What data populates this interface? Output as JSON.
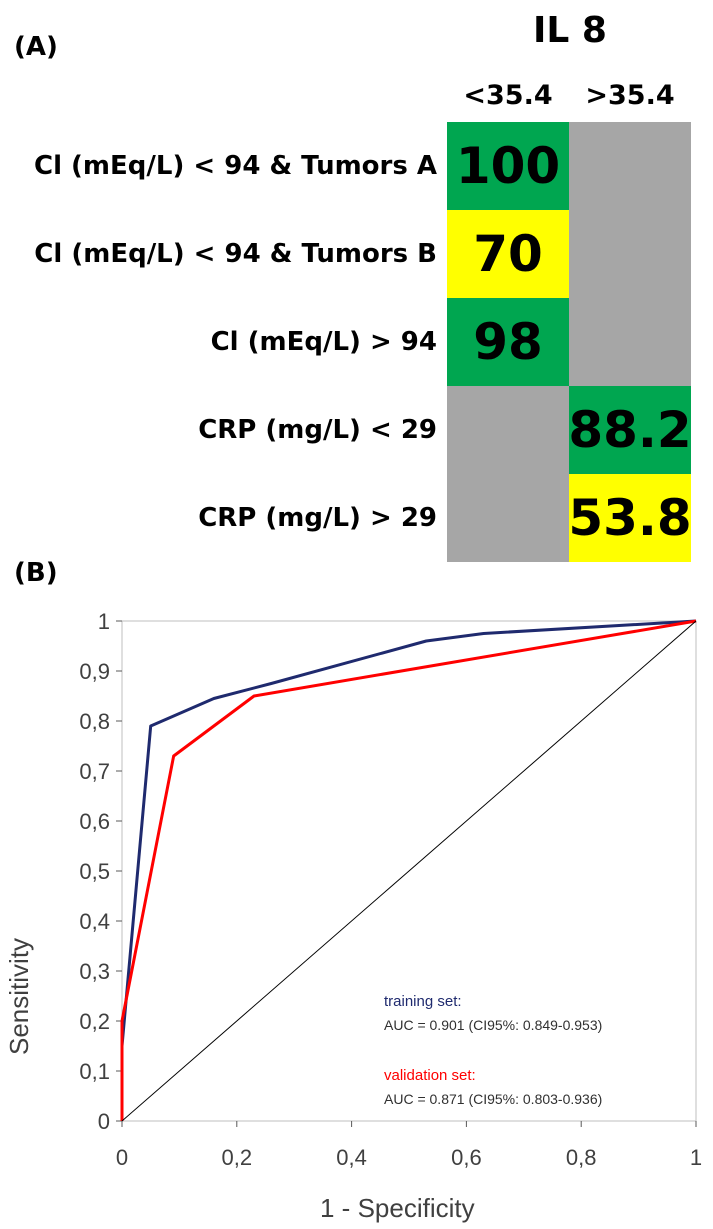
{
  "panel_a": {
    "panel_label": "(A)",
    "title": "IL 8",
    "columns": [
      "<35.4",
      ">35.4"
    ],
    "rows": [
      {
        "label": "Cl (mEq/L) < 94 & Tumors A",
        "cells": [
          {
            "value": "100",
            "color": "green"
          },
          {
            "value": "",
            "color": "gray"
          }
        ]
      },
      {
        "label": "Cl (mEq/L) < 94 & Tumors B",
        "cells": [
          {
            "value": "70",
            "color": "yellow"
          },
          {
            "value": "",
            "color": "gray"
          }
        ]
      },
      {
        "label": "Cl (mEq/L) > 94",
        "cells": [
          {
            "value": "98",
            "color": "green"
          },
          {
            "value": "",
            "color": "gray"
          }
        ]
      },
      {
        "label": "CRP (mg/L) < 29",
        "cells": [
          {
            "value": "",
            "color": "gray"
          },
          {
            "value": "88.2",
            "color": "green"
          }
        ]
      },
      {
        "label": "CRP (mg/L) > 29",
        "cells": [
          {
            "value": "",
            "color": "gray"
          },
          {
            "value": "53.8",
            "color": "yellow"
          }
        ]
      }
    ],
    "colors": {
      "green": "#00a650",
      "yellow": "#ffff00",
      "gray": "#a6a6a6"
    }
  },
  "panel_b": {
    "panel_label": "(B)"
  },
  "chart_data": {
    "type": "line",
    "title": "",
    "xlabel": "1 - Specificity",
    "ylabel": "Sensitivity",
    "xlim": [
      0,
      1
    ],
    "ylim": [
      0,
      1
    ],
    "x_ticks": [
      "0",
      "0,2",
      "0,4",
      "0,6",
      "0,8",
      "1"
    ],
    "y_ticks": [
      "0",
      "0,1",
      "0,2",
      "0,3",
      "0,4",
      "0,5",
      "0,6",
      "0,7",
      "0,8",
      "0,9",
      "1"
    ],
    "series": [
      {
        "name": "training set",
        "color": "#1f2a6e",
        "x": [
          0,
          0,
          0.05,
          0.16,
          0.26,
          0.53,
          0.63,
          1
        ],
        "y": [
          0,
          0.15,
          0.79,
          0.845,
          0.875,
          0.96,
          0.975,
          1
        ],
        "annotation_title": "training set:",
        "annotation_text": "AUC = 0.901 (CI95%: 0.849-0.953)"
      },
      {
        "name": "validation set",
        "color": "#ff0000",
        "x": [
          0,
          0,
          0.09,
          0.23,
          1
        ],
        "y": [
          0,
          0.2,
          0.73,
          0.85,
          1
        ],
        "annotation_title": "validation set:",
        "annotation_text": "AUC = 0.871 (CI95%: 0.803-0.936)"
      },
      {
        "name": "reference",
        "color": "#000000",
        "x": [
          0,
          1
        ],
        "y": [
          0,
          1
        ]
      }
    ]
  }
}
